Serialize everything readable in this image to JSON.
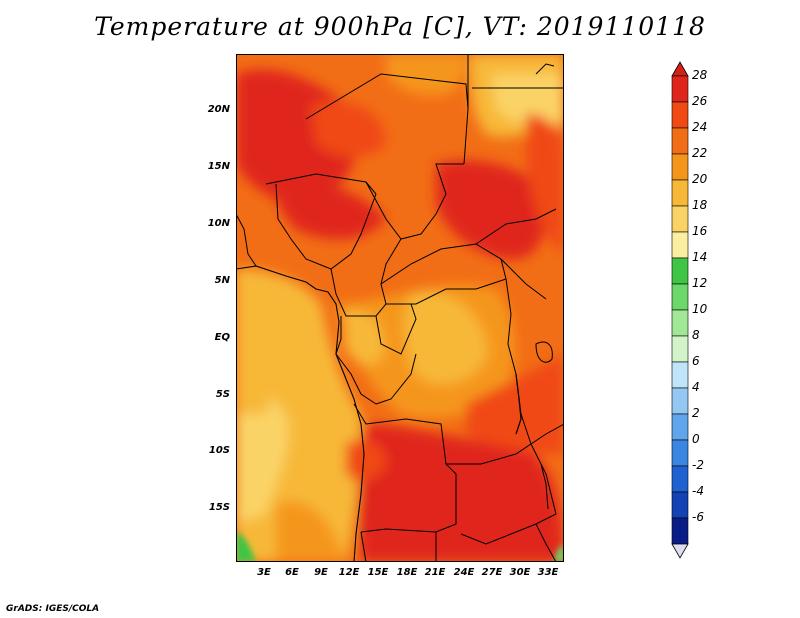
{
  "title": "Temperature at 900hPa [C], VT: 2019110118",
  "credit": "GrADS: IGES/COLA",
  "map": {
    "region": "Central Africa",
    "variable": "Temperature at 900hPa",
    "units": "C",
    "valid_time": "2019110118",
    "lat_range": [
      -19.5,
      24.5
    ],
    "lon_range": [
      0.5,
      34.0
    ]
  },
  "lat_labels": [
    "20N",
    "15N",
    "10N",
    "5N",
    "EQ",
    "5S",
    "10S",
    "15S"
  ],
  "lon_labels": [
    "3E",
    "6E",
    "9E",
    "12E",
    "15E",
    "18E",
    "21E",
    "24E",
    "27E",
    "30E",
    "33E"
  ],
  "colorbar": {
    "labels": [
      "28",
      "26",
      "24",
      "22",
      "20",
      "18",
      "16",
      "14",
      "12",
      "10",
      "8",
      "6",
      "4",
      "2",
      "0",
      "-2",
      "-4",
      "-6"
    ],
    "colors": [
      "#e0261c",
      "#f04a14",
      "#f26e16",
      "#f5961c",
      "#f7b838",
      "#fad366",
      "#fceea0",
      "#3fc444",
      "#6cd76a",
      "#a0e896",
      "#d2f4c8",
      "#c0e4f8",
      "#94c8f2",
      "#5fa6ec",
      "#3a86e2",
      "#1f62d2",
      "#1242b4",
      "#0a1d86"
    ],
    "top_arrow_color": "#d42016",
    "bottom_arrow_color": "#ddddf2"
  },
  "colors": {
    "boundary": "#000000",
    "warm_core": "#e02a1a",
    "cool_coast": "#fad878"
  }
}
